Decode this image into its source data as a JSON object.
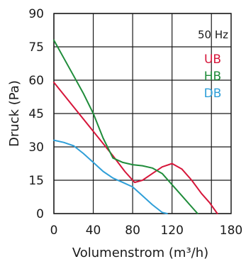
{
  "chart_data": {
    "type": "line",
    "xlabel": "Volumenstrom (m³/h)",
    "ylabel": "Druck (Pa)",
    "xlim": [
      0,
      180
    ],
    "ylim": [
      0,
      90
    ],
    "xticks": [
      0,
      40,
      80,
      120,
      180
    ],
    "xtick_labels": [
      "0",
      "40",
      "80",
      "120",
      "180"
    ],
    "yticks": [
      0,
      15,
      30,
      45,
      60,
      75,
      90
    ],
    "ytick_labels": [
      "0",
      "15",
      "30",
      "45",
      "60",
      "75",
      "90"
    ],
    "x_gridlines": [
      0,
      40,
      80,
      120,
      160
    ],
    "y_gridlines": [
      0,
      15,
      30,
      45,
      60,
      75,
      90
    ],
    "grid": true,
    "legend_title": "50 Hz",
    "legend_position": "top-right",
    "series": [
      {
        "name": "UB",
        "color": "#d6163a",
        "x": [
          0,
          20,
          40,
          60,
          72,
          82,
          90,
          100,
          110,
          120,
          130,
          140,
          150,
          158,
          166
        ],
        "y": [
          59,
          48,
          37,
          26,
          19,
          14,
          15,
          18,
          21,
          22.5,
          20,
          15,
          9,
          5,
          0
        ]
      },
      {
        "name": "HB",
        "color": "#1f8c3a",
        "x": [
          0,
          10,
          20,
          30,
          40,
          50,
          60,
          70,
          80,
          90,
          100,
          110,
          120,
          130,
          140,
          146
        ],
        "y": [
          78,
          70,
          62,
          54,
          45,
          34,
          25,
          23,
          22,
          21.5,
          20.5,
          18,
          13,
          8,
          3,
          0
        ]
      },
      {
        "name": "DB",
        "color": "#2f9fd8",
        "x": [
          0,
          10,
          20,
          30,
          40,
          50,
          60,
          70,
          80,
          90,
          100,
          110,
          115
        ],
        "y": [
          33,
          32,
          30.5,
          27,
          23,
          19,
          16,
          14,
          12,
          8,
          4,
          0.5,
          0
        ]
      }
    ]
  }
}
